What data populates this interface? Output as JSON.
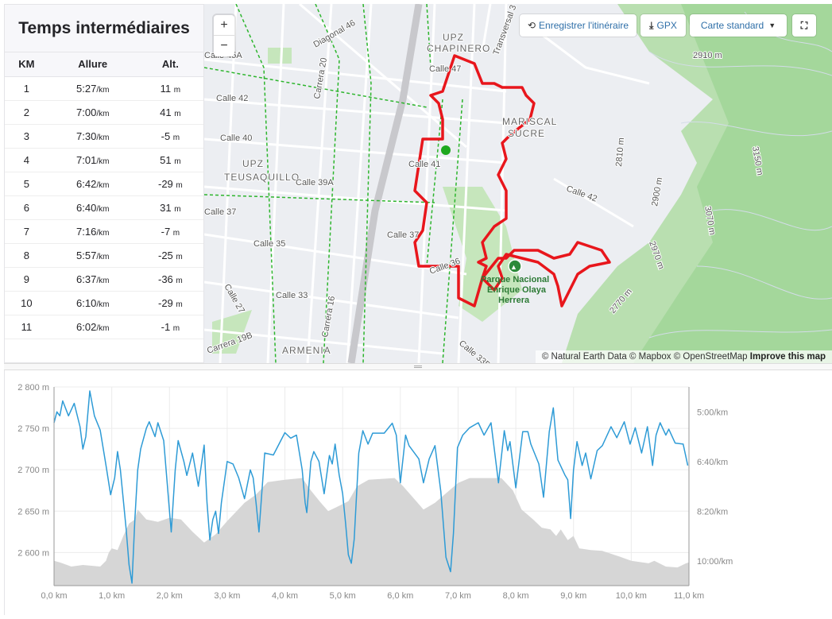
{
  "splits": {
    "title": "Temps intermédiaires",
    "columns": [
      "KM",
      "Allure",
      "Alt."
    ],
    "pace_unit": "/km",
    "alt_unit": "m",
    "rows": [
      {
        "km": "1",
        "pace": "5:27",
        "alt": "11"
      },
      {
        "km": "2",
        "pace": "7:00",
        "alt": "41"
      },
      {
        "km": "3",
        "pace": "7:30",
        "alt": "-5"
      },
      {
        "km": "4",
        "pace": "7:01",
        "alt": "51"
      },
      {
        "km": "5",
        "pace": "6:42",
        "alt": "-29"
      },
      {
        "km": "6",
        "pace": "6:40",
        "alt": "31"
      },
      {
        "km": "7",
        "pace": "7:16",
        "alt": "-7"
      },
      {
        "km": "8",
        "pace": "5:57",
        "alt": "-25"
      },
      {
        "km": "9",
        "pace": "6:37",
        "alt": "-36"
      },
      {
        "km": "10",
        "pace": "6:10",
        "alt": "-29"
      },
      {
        "km": "11",
        "pace": "6:02",
        "alt": "-1"
      }
    ]
  },
  "map": {
    "zoom_in": "+",
    "zoom_out": "−",
    "save_route": "Enregistrer l'itinéraire",
    "gpx": "GPX",
    "map_style": "Carte standard",
    "attribution": {
      "a": "© Natural Earth Data © Mapbox © OpenStreetMap",
      "b": "Improve this map"
    },
    "labels": {
      "chapinero1": "UPZ",
      "chapinero2": "CHAPINERO",
      "diag46": "Diagonal 46",
      "c45a": "Calle 45A",
      "k20": "Carrera 20",
      "c42w": "Calle 42",
      "c40": "Calle 40",
      "teus1": "UPZ",
      "teus2": "TEUSAQUILLO",
      "c39a": "Calle 39A",
      "c37w": "Calle 37",
      "c37": "Calle 37",
      "c35": "Calle 35",
      "c27": "Calle 27",
      "c33": "Calle 33",
      "k16": "Carrera 16",
      "k19b": "Carrera 19B",
      "armenia": "ARMENIA",
      "c33b": "Calle 33B",
      "c36": "Calle 36",
      "c41": "Calle 41",
      "c47": "Calle 47",
      "trans3": "Transversal 3",
      "mariscal1": "MARISCAL",
      "mariscal2": "SUCRE",
      "c42e": "Calle 42",
      "park1": "Parque Nacional",
      "park2": "Enrique Olaya",
      "park3": "Herrera",
      "e2910": "2910 m",
      "e3150": "3150 m",
      "e2900": "2900 m",
      "e3070": "3070 m",
      "e2970": "2970 m",
      "e2770": "2770 m",
      "e2810": "2810 m"
    },
    "colors": {
      "route": "#e8161c",
      "park": "#a8d8a0",
      "bike": "#2db52d",
      "start": "#1ea81e"
    }
  },
  "chart_data": {
    "type": "area+line",
    "x_unit": "km",
    "xlim": [
      0,
      11
    ],
    "x_ticks": [
      "0,0 km",
      "1,0 km",
      "2,0 km",
      "3,0 km",
      "4,0 km",
      "5,0 km",
      "6,0 km",
      "7,0 km",
      "8,0 km",
      "9,0 km",
      "10,0 km",
      "11,0 km"
    ],
    "ylim_left": [
      2560,
      2800
    ],
    "y_ticks_left": [
      {
        "v": 2800,
        "label": "2 800 m"
      },
      {
        "v": 2750,
        "label": "2 750 m"
      },
      {
        "v": 2700,
        "label": "2 700 m"
      },
      {
        "v": 2650,
        "label": "2 650 m"
      },
      {
        "v": 2600,
        "label": "2 600 m"
      }
    ],
    "ylim_right_sec_per_km": [
      250,
      650
    ],
    "y_ticks_right": [
      {
        "v": 300,
        "label": "5:00/km"
      },
      {
        "v": 400,
        "label": "6:40/km"
      },
      {
        "v": 500,
        "label": "8:20/km"
      },
      {
        "v": 600,
        "label": "10:00/km"
      }
    ],
    "series": [
      {
        "name": "Altitude",
        "color": "#d6d6d6",
        "axis": "left",
        "points": [
          [
            0,
            2590
          ],
          [
            0.1,
            2588
          ],
          [
            0.3,
            2583
          ],
          [
            0.5,
            2585
          ],
          [
            0.8,
            2583
          ],
          [
            0.9,
            2590
          ],
          [
            0.95,
            2600
          ],
          [
            1.0,
            2605
          ],
          [
            1.1,
            2603
          ],
          [
            1.2,
            2620
          ],
          [
            1.3,
            2635
          ],
          [
            1.4,
            2640
          ],
          [
            1.45,
            2652
          ],
          [
            1.6,
            2640
          ],
          [
            1.8,
            2637
          ],
          [
            2.0,
            2642
          ],
          [
            2.2,
            2640
          ],
          [
            2.4,
            2625
          ],
          [
            2.6,
            2612
          ],
          [
            2.8,
            2622
          ],
          [
            3.0,
            2638
          ],
          [
            3.3,
            2660
          ],
          [
            3.5,
            2670
          ],
          [
            3.7,
            2685
          ],
          [
            4.0,
            2688
          ],
          [
            4.3,
            2690
          ],
          [
            4.45,
            2675
          ],
          [
            4.6,
            2662
          ],
          [
            4.75,
            2650
          ],
          [
            4.9,
            2655
          ],
          [
            5.1,
            2662
          ],
          [
            5.25,
            2680
          ],
          [
            5.45,
            2688
          ],
          [
            5.9,
            2690
          ],
          [
            6.05,
            2680
          ],
          [
            6.2,
            2668
          ],
          [
            6.4,
            2652
          ],
          [
            6.6,
            2660
          ],
          [
            6.8,
            2672
          ],
          [
            7.0,
            2684
          ],
          [
            7.2,
            2690
          ],
          [
            7.75,
            2690
          ],
          [
            7.95,
            2675
          ],
          [
            8.1,
            2652
          ],
          [
            8.3,
            2640
          ],
          [
            8.45,
            2630
          ],
          [
            8.6,
            2628
          ],
          [
            8.7,
            2620
          ],
          [
            8.78,
            2628
          ],
          [
            8.9,
            2615
          ],
          [
            9.0,
            2620
          ],
          [
            9.1,
            2605
          ],
          [
            9.3,
            2603
          ],
          [
            9.5,
            2602
          ],
          [
            9.8,
            2595
          ],
          [
            10.0,
            2590
          ],
          [
            10.3,
            2587
          ],
          [
            10.4,
            2590
          ],
          [
            10.6,
            2583
          ],
          [
            10.8,
            2582
          ],
          [
            10.95,
            2587
          ],
          [
            11.0,
            2588
          ]
        ]
      },
      {
        "name": "Allure",
        "color": "#2e9bd6",
        "axis": "right",
        "points": [
          [
            0,
            322
          ],
          [
            0.05,
            300
          ],
          [
            0.1,
            308
          ],
          [
            0.15,
            278
          ],
          [
            0.25,
            308
          ],
          [
            0.35,
            283
          ],
          [
            0.45,
            330
          ],
          [
            0.5,
            375
          ],
          [
            0.55,
            350
          ],
          [
            0.62,
            258
          ],
          [
            0.7,
            308
          ],
          [
            0.8,
            337
          ],
          [
            0.9,
            408
          ],
          [
            0.98,
            467
          ],
          [
            1.05,
            433
          ],
          [
            1.1,
            380
          ],
          [
            1.15,
            417
          ],
          [
            1.25,
            537
          ],
          [
            1.3,
            608
          ],
          [
            1.35,
            645
          ],
          [
            1.4,
            517
          ],
          [
            1.45,
            417
          ],
          [
            1.5,
            375
          ],
          [
            1.6,
            333
          ],
          [
            1.65,
            320
          ],
          [
            1.75,
            350
          ],
          [
            1.8,
            322
          ],
          [
            1.9,
            358
          ],
          [
            2.0,
            500
          ],
          [
            2.03,
            542
          ],
          [
            2.1,
            417
          ],
          [
            2.15,
            358
          ],
          [
            2.25,
            400
          ],
          [
            2.3,
            428
          ],
          [
            2.4,
            383
          ],
          [
            2.5,
            450
          ],
          [
            2.6,
            367
          ],
          [
            2.65,
            483
          ],
          [
            2.7,
            558
          ],
          [
            2.75,
            517
          ],
          [
            2.8,
            500
          ],
          [
            2.85,
            545
          ],
          [
            2.9,
            483
          ],
          [
            3.0,
            400
          ],
          [
            3.1,
            405
          ],
          [
            3.2,
            433
          ],
          [
            3.3,
            475
          ],
          [
            3.4,
            417
          ],
          [
            3.45,
            433
          ],
          [
            3.5,
            483
          ],
          [
            3.55,
            542
          ],
          [
            3.65,
            383
          ],
          [
            3.8,
            387
          ],
          [
            4.0,
            342
          ],
          [
            4.1,
            353
          ],
          [
            4.2,
            347
          ],
          [
            4.3,
            417
          ],
          [
            4.35,
            483
          ],
          [
            4.38,
            503
          ],
          [
            4.45,
            400
          ],
          [
            4.5,
            380
          ],
          [
            4.59,
            400
          ],
          [
            4.68,
            465
          ],
          [
            4.77,
            388
          ],
          [
            4.82,
            405
          ],
          [
            4.87,
            365
          ],
          [
            4.94,
            427
          ],
          [
            5.0,
            465
          ],
          [
            5.05,
            523
          ],
          [
            5.1,
            588
          ],
          [
            5.15,
            605
          ],
          [
            5.2,
            557
          ],
          [
            5.28,
            383
          ],
          [
            5.35,
            338
          ],
          [
            5.44,
            365
          ],
          [
            5.52,
            343
          ],
          [
            5.72,
            343
          ],
          [
            5.86,
            323
          ],
          [
            5.93,
            347
          ],
          [
            6.0,
            443
          ],
          [
            6.09,
            347
          ],
          [
            6.15,
            368
          ],
          [
            6.32,
            395
          ],
          [
            6.4,
            443
          ],
          [
            6.5,
            395
          ],
          [
            6.6,
            368
          ],
          [
            6.7,
            460
          ],
          [
            6.79,
            593
          ],
          [
            6.87,
            622
          ],
          [
            6.92,
            545
          ],
          [
            6.99,
            372
          ],
          [
            7.08,
            347
          ],
          [
            7.2,
            332
          ],
          [
            7.35,
            322
          ],
          [
            7.45,
            347
          ],
          [
            7.57,
            322
          ],
          [
            7.7,
            443
          ],
          [
            7.8,
            338
          ],
          [
            7.86,
            378
          ],
          [
            7.9,
            360
          ],
          [
            8.0,
            453
          ],
          [
            8.12,
            340
          ],
          [
            8.21,
            340
          ],
          [
            8.26,
            365
          ],
          [
            8.4,
            405
          ],
          [
            8.48,
            472
          ],
          [
            8.58,
            340
          ],
          [
            8.65,
            292
          ],
          [
            8.73,
            397
          ],
          [
            8.85,
            427
          ],
          [
            8.9,
            437
          ],
          [
            8.95,
            515
          ],
          [
            9.0,
            417
          ],
          [
            9.06,
            360
          ],
          [
            9.15,
            408
          ],
          [
            9.21,
            383
          ],
          [
            9.3,
            435
          ],
          [
            9.41,
            378
          ],
          [
            9.5,
            368
          ],
          [
            9.65,
            330
          ],
          [
            9.75,
            352
          ],
          [
            9.88,
            320
          ],
          [
            9.98,
            365
          ],
          [
            10.07,
            332
          ],
          [
            10.18,
            383
          ],
          [
            10.28,
            330
          ],
          [
            10.37,
            408
          ],
          [
            10.43,
            347
          ],
          [
            10.5,
            322
          ],
          [
            10.6,
            347
          ],
          [
            10.65,
            335
          ],
          [
            10.76,
            363
          ],
          [
            10.9,
            365
          ],
          [
            10.98,
            408
          ]
        ]
      }
    ]
  }
}
